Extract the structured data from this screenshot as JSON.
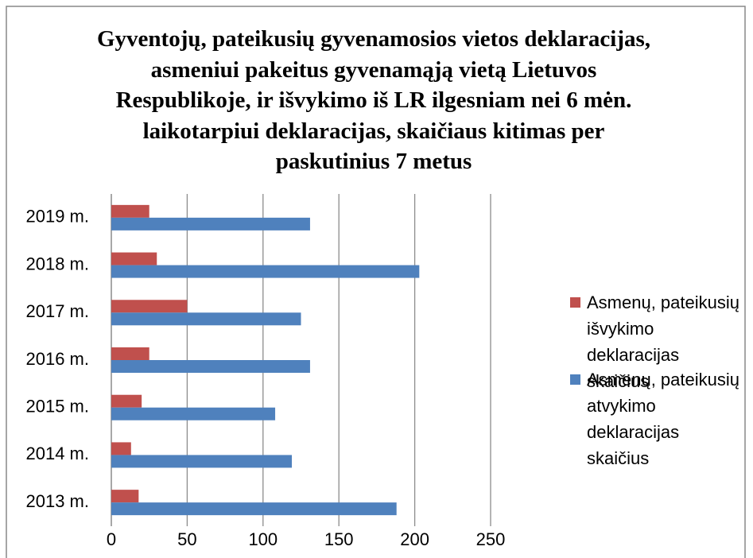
{
  "chart_data": {
    "type": "bar",
    "orientation": "horizontal",
    "title": "Gyventojų, pateikusių gyvenamosios vietos deklaracijas, asmeniui pakeitus gyvenamąją vietą Lietuvos Respublikoje, ir išvykimo iš LR ilgesniam nei 6 mėn. laikotarpiui deklaracijas, skaičiaus kitimas per paskutinius 7 metus",
    "categories": [
      "2013 m.",
      "2014 m.",
      "2015 m.",
      "2016 m.",
      "2017 m.",
      "2018 m.",
      "2019 m."
    ],
    "series": [
      {
        "name": "Asmenų, pateikusių išvykimo deklaracijas skaičius",
        "color": "#c0504d",
        "values": [
          18,
          13,
          20,
          25,
          50,
          30,
          25
        ]
      },
      {
        "name": "Asmenų, pateikusių atvykimo deklaracijas skaičius",
        "color": "#4f81bd",
        "values": [
          188,
          119,
          108,
          131,
          125,
          203,
          131
        ]
      }
    ],
    "xlim": [
      0,
      250
    ],
    "xticks": [
      0,
      50,
      100,
      150,
      200,
      250
    ],
    "grid": true,
    "legend": "right"
  }
}
